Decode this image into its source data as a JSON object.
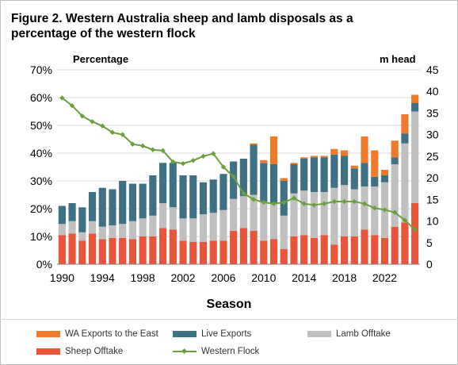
{
  "chart_data": {
    "type": "bar",
    "title": "Figure 2. Western Australia sheep and lamb disposals as a percentage of the western flock",
    "xlabel": "Season",
    "ylabel_left": "Percentage",
    "ylabel_right": "m  head",
    "y_left_ticks": [
      "0%",
      "10%",
      "20%",
      "30%",
      "40%",
      "50%",
      "60%",
      "70%"
    ],
    "y_left_range": [
      0,
      70
    ],
    "y_right_ticks": [
      "0",
      "5",
      "10",
      "15",
      "20",
      "25",
      "30",
      "35",
      "40",
      "45"
    ],
    "y_right_range": [
      0,
      45
    ],
    "x_tick_labels": [
      "1990",
      "1994",
      "1998",
      "2002",
      "2006",
      "2010",
      "2014",
      "2018",
      "2022"
    ],
    "stacked": true,
    "grid": true,
    "legend_position": "bottom",
    "x": [
      1990,
      1991,
      1992,
      1993,
      1994,
      1995,
      1996,
      1997,
      1998,
      1999,
      2000,
      2001,
      2002,
      2003,
      2004,
      2005,
      2006,
      2007,
      2008,
      2009,
      2010,
      2011,
      2012,
      2013,
      2014,
      2015,
      2016,
      2017,
      2018,
      2019,
      2020,
      2021,
      2022,
      2023,
      2024,
      2025
    ],
    "series": [
      {
        "name": "Sheep Offtake",
        "color": "#e8553a",
        "axis": "left",
        "values": [
          10.5,
          11,
          8.5,
          11,
          9,
          9.5,
          9.5,
          9,
          10,
          10,
          13,
          12.5,
          8.5,
          8,
          8,
          8.5,
          8.5,
          12,
          13,
          12,
          8.5,
          9,
          5.5,
          10,
          10.5,
          9.5,
          10.5,
          7,
          10,
          10,
          12.5,
          10.5,
          9.5,
          13.5,
          15,
          22
        ]
      },
      {
        "name": "Lamb Offtake",
        "color": "#c0c0c0",
        "axis": "left",
        "values": [
          4,
          4.5,
          3,
          4.5,
          4.5,
          4.5,
          5,
          6.5,
          6.5,
          7.5,
          9,
          8,
          8,
          8.5,
          10,
          10,
          11,
          11.5,
          11.5,
          13,
          14,
          13,
          12,
          15.5,
          16,
          16.5,
          15.5,
          20.5,
          18.5,
          17,
          15.5,
          17.5,
          20,
          22.5,
          28.5,
          33
        ]
      },
      {
        "name": "Live Exports",
        "color": "#3e7184",
        "axis": "left",
        "values": [
          6.5,
          6.5,
          9,
          10.5,
          14,
          13,
          15.5,
          13.5,
          12.5,
          14.5,
          14.5,
          16,
          15.5,
          15.5,
          11.5,
          12,
          13,
          13.5,
          13.5,
          18,
          14,
          14,
          12.5,
          10.5,
          11.5,
          12.5,
          12.5,
          12,
          10.5,
          7.5,
          8.5,
          3.5,
          2.5,
          2.5,
          3.5,
          3
        ]
      },
      {
        "name": "WA Exports to the East",
        "color": "#f07a2a",
        "axis": "left",
        "values": [
          0,
          0,
          0,
          0,
          0,
          0,
          0,
          0,
          0,
          0,
          0,
          0,
          0,
          0,
          0,
          0,
          0,
          0,
          0,
          0.5,
          1,
          10,
          1,
          0.5,
          0.5,
          0.5,
          0.5,
          2,
          2,
          1,
          9.5,
          9.5,
          2,
          6,
          7,
          3
        ]
      },
      {
        "name": "Western Flock",
        "color": "#6ca03c",
        "axis": "right",
        "type": "line",
        "values": [
          38.5,
          36.7,
          34.3,
          33,
          32,
          30.5,
          30,
          27.8,
          27.4,
          26.5,
          26.3,
          23.7,
          23.3,
          24,
          25,
          25.6,
          22.5,
          20.3,
          16.4,
          15,
          14.3,
          14,
          14.3,
          15.3,
          14,
          13.7,
          14,
          14.5,
          14.5,
          14.5,
          14,
          13,
          12.6,
          12,
          10.2,
          8
        ]
      }
    ]
  }
}
